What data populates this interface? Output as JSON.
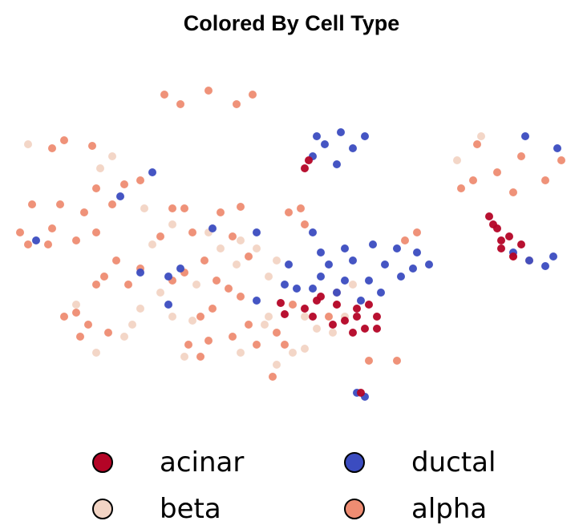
{
  "chart_data": {
    "type": "scatter",
    "title": "Colored By Cell Type",
    "xlabel": "",
    "ylabel": "",
    "axes_visible": false,
    "grid": false,
    "legend_position": "bottom",
    "legend": [
      {
        "name": "acinar",
        "color": "#b40426"
      },
      {
        "name": "ductal",
        "color": "#3b4cc0"
      },
      {
        "name": "beta",
        "color": "#f2d4c4"
      },
      {
        "name": "alpha",
        "color": "#ee8c72"
      }
    ],
    "series": [
      {
        "name": "alpha",
        "color": "#ee8c72",
        "points": [
          [
            260,
            113
          ],
          [
            205,
            118
          ],
          [
            315,
            118
          ],
          [
            225,
            130
          ],
          [
            295,
            130
          ],
          [
            80,
            175
          ],
          [
            115,
            182
          ],
          [
            65,
            185
          ],
          [
            595,
            180
          ],
          [
            650,
            195
          ],
          [
            700,
            200
          ],
          [
            620,
            215
          ],
          [
            680,
            225
          ],
          [
            590,
            225
          ],
          [
            640,
            240
          ],
          [
            575,
            235
          ],
          [
            155,
            230
          ],
          [
            120,
            235
          ],
          [
            175,
            225
          ],
          [
            40,
            255
          ],
          [
            75,
            255
          ],
          [
            105,
            265
          ],
          [
            140,
            255
          ],
          [
            65,
            285
          ],
          [
            25,
            290
          ],
          [
            35,
            305
          ],
          [
            120,
            290
          ],
          [
            95,
            300
          ],
          [
            60,
            305
          ],
          [
            230,
            260
          ],
          [
            275,
            265
          ],
          [
            215,
            260
          ],
          [
            300,
            258
          ],
          [
            200,
            295
          ],
          [
            240,
            290
          ],
          [
            290,
            295
          ],
          [
            310,
            320
          ],
          [
            375,
            260
          ],
          [
            360,
            265
          ],
          [
            380,
            280
          ],
          [
            145,
            325
          ],
          [
            175,
            335
          ],
          [
            130,
            345
          ],
          [
            160,
            355
          ],
          [
            120,
            355
          ],
          [
            255,
            325
          ],
          [
            230,
            340
          ],
          [
            270,
            350
          ],
          [
            215,
            350
          ],
          [
            265,
            385
          ],
          [
            250,
            395
          ],
          [
            300,
            370
          ],
          [
            285,
            360
          ],
          [
            95,
            390
          ],
          [
            80,
            395
          ],
          [
            110,
            405
          ],
          [
            135,
            415
          ],
          [
            100,
            420
          ],
          [
            235,
            430
          ],
          [
            260,
            425
          ],
          [
            250,
            445
          ],
          [
            290,
            420
          ],
          [
            310,
            405
          ],
          [
            320,
            430
          ],
          [
            345,
            415
          ],
          [
            365,
            380
          ],
          [
            355,
            430
          ],
          [
            340,
            470
          ],
          [
            505,
            300
          ],
          [
            520,
            290
          ],
          [
            460,
            450
          ],
          [
            495,
            450
          ],
          [
            640,
            320
          ],
          [
            660,
            325
          ],
          [
            420,
            365
          ],
          [
            410,
            395
          ]
        ]
      },
      {
        "name": "beta",
        "color": "#f2d4c4",
        "points": [
          [
            35,
            180
          ],
          [
            140,
            195
          ],
          [
            125,
            210
          ],
          [
            180,
            260
          ],
          [
            300,
            300
          ],
          [
            320,
            310
          ],
          [
            345,
            325
          ],
          [
            335,
            345
          ],
          [
            245,
            355
          ],
          [
            200,
            365
          ],
          [
            240,
            400
          ],
          [
            215,
            395
          ],
          [
            175,
            385
          ],
          [
            165,
            405
          ],
          [
            95,
            380
          ],
          [
            155,
            420
          ],
          [
            120,
            440
          ],
          [
            335,
            395
          ],
          [
            330,
            405
          ],
          [
            365,
            440
          ],
          [
            380,
            435
          ],
          [
            395,
            410
          ],
          [
            380,
            395
          ],
          [
            420,
            380
          ],
          [
            430,
            395
          ],
          [
            415,
            415
          ],
          [
            440,
            355
          ],
          [
            275,
            310
          ],
          [
            260,
            290
          ],
          [
            600,
            170
          ],
          [
            570,
            200
          ],
          [
            215,
            280
          ],
          [
            190,
            305
          ],
          [
            295,
            330
          ],
          [
            230,
            445
          ],
          [
            300,
            440
          ],
          [
            345,
            455
          ]
        ]
      },
      {
        "name": "ductal",
        "color": "#3b4cc0",
        "points": [
          [
            395,
            170
          ],
          [
            425,
            165
          ],
          [
            455,
            170
          ],
          [
            405,
            180
          ],
          [
            440,
            185
          ],
          [
            390,
            195
          ],
          [
            420,
            205
          ],
          [
            400,
            315
          ],
          [
            430,
            310
          ],
          [
            465,
            305
          ],
          [
            495,
            310
          ],
          [
            520,
            315
          ],
          [
            410,
            330
          ],
          [
            440,
            325
          ],
          [
            480,
            330
          ],
          [
            515,
            335
          ],
          [
            535,
            330
          ],
          [
            400,
            345
          ],
          [
            430,
            350
          ],
          [
            460,
            350
          ],
          [
            500,
            345
          ],
          [
            420,
            365
          ],
          [
            450,
            375
          ],
          [
            475,
            365
          ],
          [
            390,
            360
          ],
          [
            640,
            315
          ],
          [
            660,
            325
          ],
          [
            690,
            320
          ],
          [
            680,
            332
          ],
          [
            655,
            170
          ],
          [
            695,
            185
          ],
          [
            445,
            490
          ],
          [
            455,
            495
          ],
          [
            190,
            215
          ],
          [
            150,
            245
          ],
          [
            225,
            335
          ],
          [
            210,
            345
          ],
          [
            175,
            340
          ],
          [
            360,
            330
          ],
          [
            370,
            360
          ],
          [
            320,
            375
          ],
          [
            355,
            355
          ],
          [
            210,
            380
          ],
          [
            320,
            290
          ],
          [
            45,
            300
          ],
          [
            265,
            285
          ],
          [
            390,
            290
          ]
        ]
      },
      {
        "name": "acinar",
        "color": "#b40426",
        "points": [
          [
            385,
            200
          ],
          [
            380,
            210
          ],
          [
            620,
            285
          ],
          [
            625,
            300
          ],
          [
            635,
            295
          ],
          [
            650,
            305
          ],
          [
            640,
            320
          ],
          [
            625,
            310
          ],
          [
            610,
            270
          ],
          [
            615,
            280
          ],
          [
            400,
            370
          ],
          [
            420,
            380
          ],
          [
            445,
            385
          ],
          [
            470,
            395
          ],
          [
            430,
            400
          ],
          [
            455,
            410
          ],
          [
            415,
            405
          ],
          [
            440,
            415
          ],
          [
            470,
            410
          ],
          [
            380,
            385
          ],
          [
            390,
            395
          ],
          [
            395,
            375
          ],
          [
            460,
            380
          ],
          [
            445,
            395
          ],
          [
            350,
            378
          ],
          [
            355,
            392
          ],
          [
            450,
            490
          ]
        ]
      }
    ]
  }
}
